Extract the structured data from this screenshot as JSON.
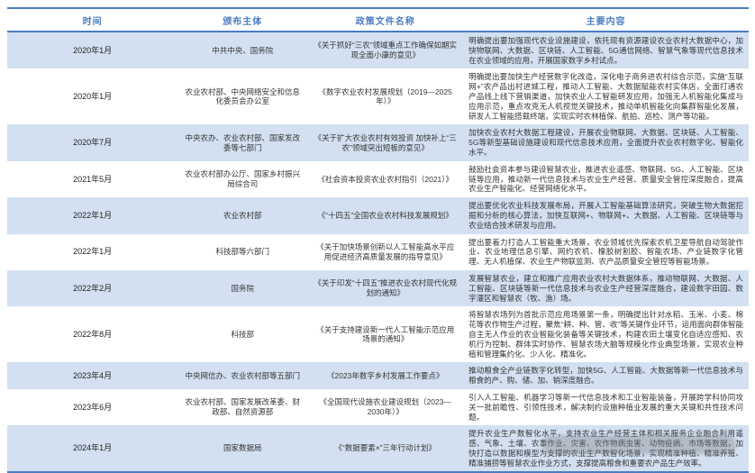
{
  "colors": {
    "border_blue": "#4b7ec0",
    "header_text_blue": "#4a7cc2",
    "row_stripe_blue": "#d2e0f1",
    "body_text": "#353535"
  },
  "table": {
    "columns": [
      {
        "key": "time",
        "label": "时间"
      },
      {
        "key": "issuer",
        "label": "颁布主体"
      },
      {
        "key": "policy",
        "label": "政策文件名称"
      },
      {
        "key": "content",
        "label": "主要内容"
      }
    ],
    "rows": [
      {
        "time": "2020年1月",
        "issuer": "中共中央、国务院",
        "policy": "《关于抓好“三农”领域重点工作确保如期实现全面小康的意见》",
        "content": "明确提出要加强现代农业设施建设，依托现有资源建设农业农村大数据中心，加快物联网、大数据、区块链、人工智能、5G通信网络、智慧气象等现代信息技术在农业领域的应用，开展国家数字乡村试点。"
      },
      {
        "time": "2020年1月",
        "issuer": "农业农村部、中央网络安全和信息化委员会办公室",
        "policy": "《数字农业农村发展规划（2019—2025年）》",
        "content": "明确提出要加快生产经营数字化改造，深化电子商务进农村综合示范，实施“互联网+”农产品出村进城工程，推动人工智能、大数据赋能农村实体店，全面打通农产品线上线下营销渠道，加快农业人工智能研发应用，加强无人机智能化集成与应用示范，重点攻克无人机视觉关键技术，推动单机智能化向集群智能化发展，研发人工智能搭载终端，实现实时农林植保、航拍、巡检、测产等功能。"
      },
      {
        "time": "2020年7月",
        "issuer": "中央农办、农业农村部、国家发改委等七部门",
        "policy": "《关于扩大农业农村有效投资 加快补上“三农”领域突出短板的意见》",
        "content": "加快农业农村大数据工程建设，开展农业物联网、大数据、区块链、人工智能、5G等新型基础设施建设和现代信息技术应用，全面提升农业农村数字化、智能化水平。"
      },
      {
        "time": "2021年5月",
        "issuer": "农业农村部办公厅、国家乡村振兴局综合司",
        "policy": "《社会资本投资农业农村指引（2021）》",
        "content": "鼓励社会资本参与建设智慧农业，推进农业遥感、物联网、5G、人工智能、区块链等应用，推动新一代信息技术与农业生产经营、质量安全管控深度融合，提高农业生产智能化、经营网络化水平。"
      },
      {
        "time": "2022年1月",
        "issuer": "农业农村部",
        "policy": "《“十四五”全国农业农村科技发展规划》",
        "content": "提出要优化农业科技发展布局，开展人工智能基础算法研究，突破生物大数据挖掘和分析的核心算法，加快互联网+、物联网+、大数据、人工智能、区块链等与农业结合技术研发与应用。"
      },
      {
        "time": "2022年1月",
        "issuer": "科技部等六部门",
        "policy": "《关于加快场景创新以人工智能高水平应用促进经济高质量发展的指导意见》",
        "content": "提出要着力打造人工智能重大场景，农业领域优先探索农机卫星导航自动驾驶作业、农业地理信息引擎、网约农机、橡胶树割胶、智能农场、产业链数字化管理、无人机植保、农业生产物联监测、农产品质量安全管控等智能场景。"
      },
      {
        "time": "2022年2月",
        "issuer": "国务院",
        "policy": "《关于印发“十四五”推进农业农村现代化规划的通知》",
        "content": "发展智慧农业，建立和推广应用农业农村大数据体系，推动物联网、大数据、人工智能、区块链等新一代信息技术与农业生产经营深度融合，建设数字田园、数字灌区和智慧农（牧、渔）场。"
      },
      {
        "time": "2022年8月",
        "issuer": "科技部",
        "policy": "《关于支持建设新一代人工智能示范应用场景的通知》",
        "content": "将智慧农场列为首批示范应用场景第一条，明确提出针对水稻、玉米、小麦、棉花等农作物生产过程，聚焦“耕、种、管、收”等关键作业环节，运用面向群体智能自主无人作业的农业智能化装备等关键技术，构建农田土壤变化自适应感知、农机行为控制、群体实时协作、智慧农场大脑等规模化作业典型场景，实现农业种植和管理集约化、少人化、精准化。"
      },
      {
        "time": "2023年4月",
        "issuer": "中央网信办、农业农村部等五部门",
        "policy": "《2023年数字乡村发展工作要点》",
        "content": "推动粮食全产业链数字化转型，加快5G、人工智能、大数据等新一代信息技术与粮食的产、购、储、加、销深度融合。"
      },
      {
        "time": "2023年6月",
        "issuer": "农业农村部、国家发展改革委、财政部、自然资源部",
        "policy": "《全国现代设施农业建设规划（2023—2030年）》",
        "content": "引入人工智能、机器学习等新一代信息技术和工业智能装备，开展跨学科协同攻关一批前瞻性、引领性技术，解决制约设施种植业发展的重大关键和共性技术问题。"
      },
      {
        "time": "2024年1月",
        "issuer": "国家数据局",
        "policy": "《“数据要素×”三年行动计划》",
        "content": "提升农业生产数智化水平，支持农业生产经营主体和相关服务企业融合利用遥感、气象、土壤、农事作业、灾害、农作物病虫害、动物疫病、市场等数据，加快打造以数据和模型为支撑的农业生产数智化场景，实现精准种植、精准养殖、精准捕捞等智慧农业作业方式，支撑提高粮食和重要农产品生产效率。"
      }
    ]
  }
}
